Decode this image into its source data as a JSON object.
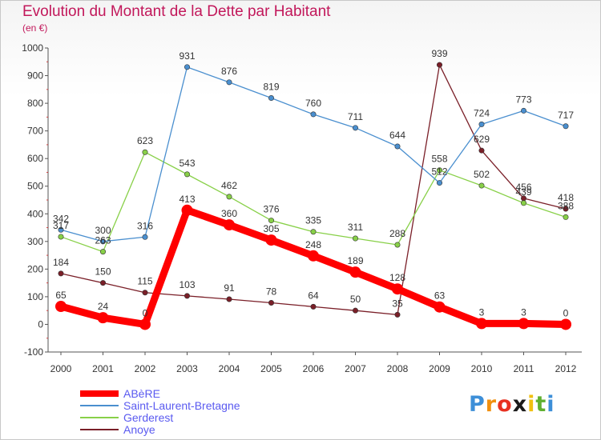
{
  "header": {
    "title": "Evolution du Montant de la Dette par Habitant",
    "subtitle": "(en €)"
  },
  "logo": {
    "text": "Proxiti"
  },
  "colors": {
    "axis": "#555555",
    "grid": "#e0e0e0",
    "title": "#c2185b",
    "label": "#333333",
    "legend_text": "#5a5af0"
  },
  "chart_data": {
    "type": "line",
    "title": "Evolution du Montant de la Dette par Habitant",
    "subtitle": "(en €)",
    "xlabel": "",
    "ylabel": "",
    "x": [
      "2000",
      "2001",
      "2002",
      "2003",
      "2004",
      "2005",
      "2006",
      "2007",
      "2008",
      "2009",
      "2010",
      "2011",
      "2012"
    ],
    "ylim": [
      -100,
      1000
    ],
    "yticks": [
      -100,
      0,
      100,
      200,
      300,
      400,
      500,
      600,
      700,
      800,
      900,
      1000
    ],
    "grid": false,
    "legend_position": "bottom-left",
    "series": [
      {
        "name": "ABèRE",
        "color": "#ff0000",
        "values": [
          65,
          24,
          0,
          413,
          360,
          305,
          248,
          189,
          128,
          63,
          3,
          3,
          0
        ],
        "labels": [
          "65",
          "24",
          "0",
          "413",
          "360",
          "305",
          "248",
          "189",
          "128",
          "63",
          "3",
          "3",
          "0"
        ]
      },
      {
        "name": "Saint-Laurent-Bretagne",
        "color": "#4a8fcf",
        "values": [
          342,
          300,
          316,
          931,
          876,
          819,
          760,
          711,
          644,
          512,
          724,
          773,
          717
        ],
        "labels": [
          "342",
          "300",
          "316",
          "931",
          "876",
          "819",
          "760",
          "711",
          "644",
          "512",
          "724",
          "773",
          "717"
        ]
      },
      {
        "name": "Gerderest",
        "color": "#88d048",
        "values": [
          317,
          263,
          623,
          543,
          462,
          376,
          335,
          311,
          288,
          558,
          502,
          439,
          388
        ],
        "labels": [
          "317",
          "263",
          "623",
          "543",
          "462",
          "376",
          "335",
          "311",
          "288",
          "558",
          "502",
          "439",
          "388"
        ]
      },
      {
        "name": "Anoye",
        "color": "#7a1f28",
        "values": [
          184,
          150,
          115,
          103,
          91,
          78,
          64,
          50,
          35,
          939,
          629,
          456,
          418
        ],
        "labels": [
          "184",
          "150",
          "115",
          "103",
          "91",
          "78",
          "64",
          "50",
          "35",
          "939",
          "629",
          "456",
          "418"
        ]
      }
    ]
  }
}
